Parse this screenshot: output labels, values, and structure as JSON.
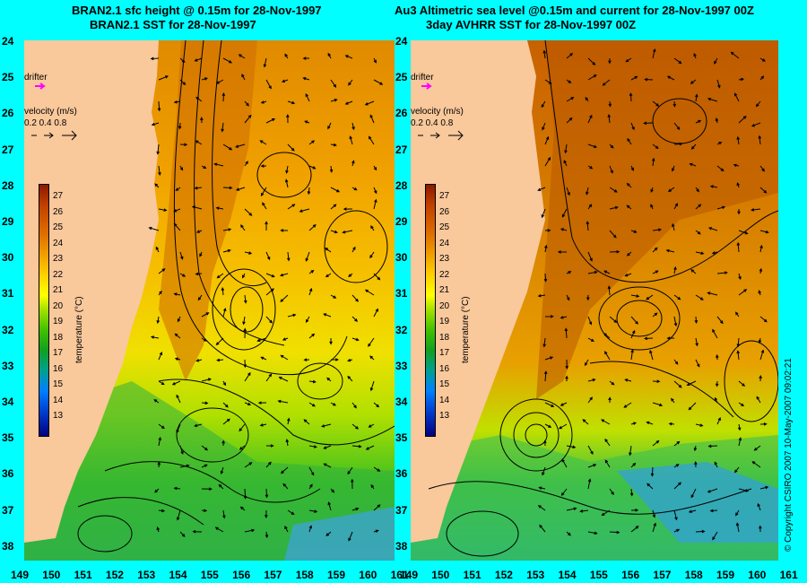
{
  "left_panel": {
    "title_line1": "BRAN2.1 sfc height @ 0.15m for 28-Nov-1997",
    "title_line2": "BRAN2.1 SST for 28-Nov-1997",
    "drifter_label": "drifter",
    "velocity_label": "velocity (m/s)",
    "velocity_scale": "0.2 0.4 0.8",
    "colorbar_unit": "temperature (°C)"
  },
  "right_panel": {
    "title_line1": "Au3 Altimetric sea level  @0.15m and current for 28-Nov-1997 00Z",
    "title_line2": "3day AVHRR SST for 28-Nov-1997 00Z",
    "drifter_label": "drifter",
    "velocity_label": "velocity (m/s)",
    "velocity_scale": "0.2 0.4 0.8",
    "colorbar_unit": "temperature (°C)"
  },
  "colorbar_ticks": [
    "27",
    "26",
    "25",
    "24",
    "23",
    "22",
    "21",
    "20",
    "19",
    "18",
    "17",
    "16",
    "15",
    "14",
    "13"
  ],
  "y_ticks": [
    "24",
    "25",
    "26",
    "27",
    "28",
    "29",
    "30",
    "31",
    "32",
    "33",
    "34",
    "35",
    "36",
    "37",
    "38"
  ],
  "x_ticks": [
    "149",
    "150",
    "151",
    "152",
    "153",
    "154",
    "155",
    "156",
    "157",
    "158",
    "159",
    "160",
    "161"
  ],
  "copyright": "© Copyright CSIRO 2007   10-May-2007 09:02:21",
  "colors": {
    "background": "#00ffff",
    "land": "#f9c89b",
    "drifter": "#ff00ff"
  }
}
